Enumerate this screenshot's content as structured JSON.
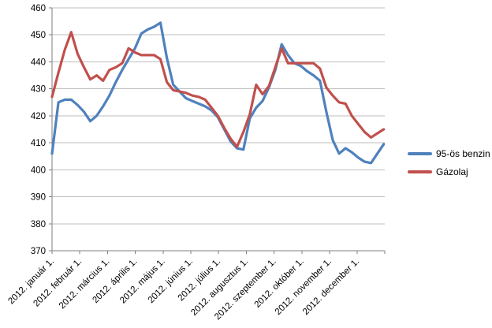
{
  "chart_data": {
    "type": "line",
    "title": "",
    "xlabel": "",
    "ylabel": "",
    "ylim": [
      370,
      460
    ],
    "y_tick_step": 10,
    "y_tick_labels": [
      "370",
      "380",
      "390",
      "400",
      "410",
      "420",
      "430",
      "440",
      "450",
      "460"
    ],
    "x_tick_labels": [
      "2012. január 1.",
      "2012. február 1.",
      "2012. március 1.",
      "2012. április 1.",
      "2012. május 1.",
      "2012. június 1.",
      "2012. július 1.",
      "2012. augusztus 1.",
      "2012. szeptember 1.",
      "2012. október 1.",
      "2012. november 1.",
      "2012. december 1."
    ],
    "x_unit": "week",
    "points_per_series": 53,
    "grid": "horizontal",
    "legend_position": "right",
    "series": [
      {
        "name": "95-ös benzin",
        "color": "#4F81BD",
        "values": [
          406,
          425,
          426,
          426,
          424,
          421.5,
          418,
          420,
          423.5,
          427.5,
          432.5,
          437,
          441,
          445,
          450.5,
          452,
          453,
          454.5,
          441.5,
          431.5,
          429,
          426.5,
          425.5,
          424.5,
          423.5,
          422,
          419.5,
          415,
          410.5,
          408,
          407.5,
          419,
          423,
          425.5,
          430.5,
          437,
          446.5,
          442.5,
          439.5,
          438.5,
          436.5,
          435,
          433,
          421.5,
          411,
          406,
          408,
          406.5,
          404.5,
          403,
          402.5,
          406,
          409.5
        ]
      },
      {
        "name": "Gázolaj",
        "color": "#C0504D",
        "values": [
          427,
          436,
          444.5,
          451,
          443,
          438,
          433.5,
          435,
          433,
          437,
          438,
          439.5,
          445,
          443.5,
          442.5,
          442.5,
          442.5,
          441,
          432.5,
          429.5,
          429,
          428.5,
          427.5,
          427,
          426,
          423,
          420,
          415.5,
          411.5,
          408.5,
          414,
          420.5,
          431.5,
          428,
          431,
          438,
          445,
          439.5,
          439.5,
          439.5,
          439.5,
          439.5,
          437.5,
          430.5,
          427.5,
          425,
          424.5,
          420,
          417,
          414,
          412,
          413.5,
          415
        ]
      }
    ],
    "month_week_positions": [
      0,
      4.43,
      8.57,
      13,
      17.29,
      21.71,
      26,
      30.43,
      34.86,
      39.14,
      43.57,
      47.86
    ],
    "colors": {
      "gridline": "#BEBEBE",
      "axis": "#7F7F7F",
      "tick_label": "#000000",
      "background": "#FFFFFF"
    }
  }
}
